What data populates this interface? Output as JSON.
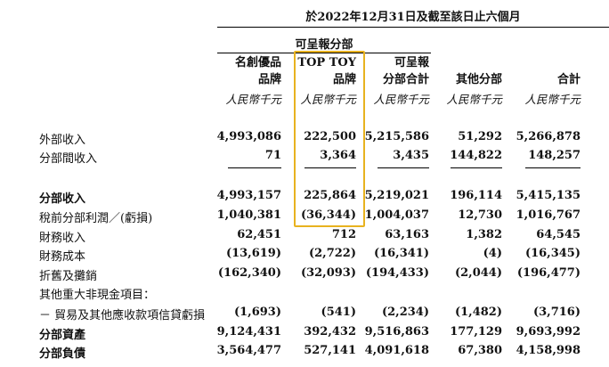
{
  "header": {
    "period": "於2022年12月31日及截至該日止六個月",
    "group_label": "可呈報分部",
    "columns": [
      {
        "line1": "名創優品",
        "line2": "品牌",
        "unit": "人民幣千元"
      },
      {
        "line1": "TOP TOY",
        "line2": "品牌",
        "unit": "人民幣千元"
      },
      {
        "line1": "可呈報",
        "line2": "分部合計",
        "unit": "人民幣千元"
      },
      {
        "line1": "",
        "line2": "其他分部",
        "unit": "人民幣千元"
      },
      {
        "line1": "",
        "line2": "合計",
        "unit": "人民幣千元"
      }
    ]
  },
  "rows": [
    {
      "label": "外部收入",
      "values": [
        "4,993,086",
        "222,500",
        "5,215,586",
        "51,292",
        "5,266,878"
      ]
    },
    {
      "label": "分部間收入",
      "values": [
        "71",
        "3,364",
        "3,435",
        "144,822",
        "148,257"
      ]
    },
    {
      "label": "分部收入",
      "values": [
        "4,993,157",
        "225,864",
        "5,219,021",
        "196,114",
        "5,415,135"
      ]
    },
    {
      "label": "稅前分部利潤／(虧損)",
      "values": [
        "1,040,381",
        "(36,344)",
        "1,004,037",
        "12,730",
        "1,016,767"
      ]
    },
    {
      "label": "財務收入",
      "values": [
        "62,451",
        "712",
        "63,163",
        "1,382",
        "64,545"
      ]
    },
    {
      "label": "財務成本",
      "values": [
        "(13,619)",
        "(2,722)",
        "(16,341)",
        "(4)",
        "(16,345)"
      ]
    },
    {
      "label": "折舊及攤銷",
      "values": [
        "(162,340)",
        "(32,093)",
        "(194,433)",
        "(2,044)",
        "(196,477)"
      ]
    },
    {
      "label": "其他重大非現金項目：",
      "values": [
        "",
        "",
        "",
        "",
        ""
      ]
    },
    {
      "label": "－ 貿易及其他應收款項信貸虧損",
      "values": [
        "(1,693)",
        "(541)",
        "(2,234)",
        "(1,482)",
        "(3,716)"
      ]
    },
    {
      "label": "分部資產",
      "values": [
        "9,124,431",
        "392,432",
        "9,516,863",
        "177,129",
        "9,693,992"
      ]
    },
    {
      "label": "分部負債",
      "values": [
        "3,564,477",
        "527,141",
        "4,091,618",
        "67,380",
        "4,158,998"
      ]
    }
  ],
  "highlight_color": "#e8b21f"
}
